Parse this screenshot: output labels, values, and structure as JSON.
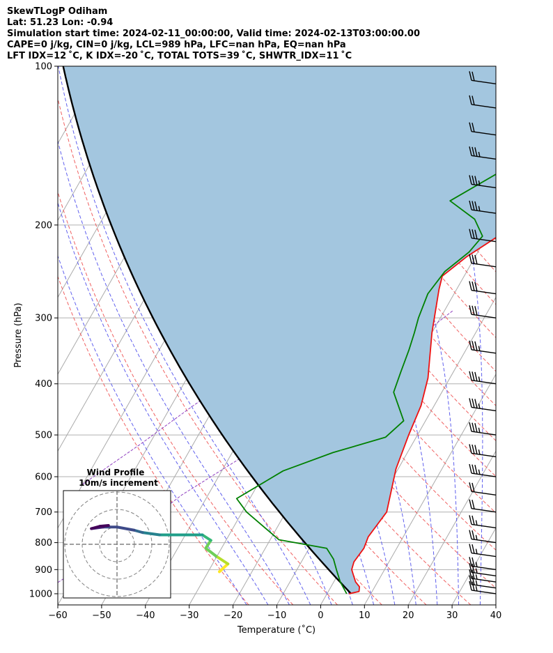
{
  "header": {
    "line1": "SkewTLogP Odiham",
    "line2": "Lat: 51.23   Lon: -0.94",
    "line3": "Simulation start time: 2024-02-11_00:00:00, Valid time: 2024-02-13T03:00:00.00",
    "line4": "CAPE=0 j/kg, CIN=0 j/kg, LCL=989 hPa, LFC=nan hPa, EQ=nan hPa",
    "line5": "LFT IDX=12 ˚C, K IDX=-20 ˚C, TOTAL TOTS=39 ˚C, SHWTR_IDX=11 ˚C"
  },
  "chart_data": {
    "type": "line",
    "xlabel": "Temperature (˚C)",
    "ylabel": "Pressure (hPa)",
    "xlim": [
      -60,
      40
    ],
    "ylim": [
      1050,
      100
    ],
    "y_scale": "log",
    "x_ticks": [
      "−60",
      "−50",
      "−40",
      "−30",
      "−20",
      "−10",
      "0",
      "10",
      "20",
      "30",
      "40"
    ],
    "y_ticks": [
      "100",
      "200",
      "300",
      "400",
      "500",
      "600",
      "700",
      "800",
      "900",
      "1000"
    ],
    "grid": true,
    "series": [
      {
        "color": "#ee1111",
        "points": [
          [
            5.0,
            1000
          ],
          [
            7.0,
            990
          ],
          [
            6.5,
            970
          ],
          [
            5.0,
            950
          ],
          [
            3.5,
            920
          ],
          [
            2.5,
            900
          ],
          [
            2.0,
            870
          ],
          [
            2.5,
            820
          ],
          [
            2.0,
            780
          ],
          [
            3.0,
            700
          ],
          [
            -0.5,
            580
          ],
          [
            -2,
            500
          ],
          [
            -3,
            440
          ],
          [
            -5,
            390
          ],
          [
            -10,
            320
          ],
          [
            -14,
            265
          ],
          [
            -15,
            250
          ],
          [
            -12,
            230
          ],
          [
            -5,
            200
          ],
          [
            0,
            175
          ],
          [
            5,
            155
          ],
          [
            10,
            135
          ],
          [
            13,
            115
          ],
          [
            15,
            100
          ]
        ]
      },
      {
        "color": "#008000",
        "points": [
          [
            4.5,
            1000
          ],
          [
            1.5,
            950
          ],
          [
            -1,
            900
          ],
          [
            -3,
            860
          ],
          [
            -6,
            820
          ],
          [
            -18,
            790
          ],
          [
            -29,
            700
          ],
          [
            -33,
            660
          ],
          [
            -26,
            585
          ],
          [
            -17,
            540
          ],
          [
            -7,
            505
          ],
          [
            -5,
            470
          ],
          [
            -11,
            415
          ],
          [
            -12,
            380
          ],
          [
            -13,
            345
          ],
          [
            -14,
            320
          ],
          [
            -15,
            300
          ],
          [
            -16,
            270
          ],
          [
            -15,
            245
          ],
          [
            -12,
            225
          ],
          [
            -11,
            210
          ],
          [
            -15,
            195
          ],
          [
            -23,
            180
          ],
          [
            -12,
            150
          ],
          [
            -2,
            120
          ],
          [
            7,
            100
          ]
        ]
      }
    ],
    "wind_barbs": [
      {
        "p": 1000,
        "speed_kt": 15
      },
      {
        "p": 975,
        "speed_kt": 15
      },
      {
        "p": 950,
        "speed_kt": 15
      },
      {
        "p": 925,
        "speed_kt": 15
      },
      {
        "p": 900,
        "speed_kt": 15
      },
      {
        "p": 850,
        "speed_kt": 15
      },
      {
        "p": 800,
        "speed_kt": 15
      },
      {
        "p": 750,
        "speed_kt": 15
      },
      {
        "p": 700,
        "speed_kt": 20
      },
      {
        "p": 650,
        "speed_kt": 20
      },
      {
        "p": 600,
        "speed_kt": 25
      },
      {
        "p": 550,
        "speed_kt": 25
      },
      {
        "p": 500,
        "speed_kt": 25
      },
      {
        "p": 450,
        "speed_kt": 25
      },
      {
        "p": 400,
        "speed_kt": 25
      },
      {
        "p": 350,
        "speed_kt": 25
      },
      {
        "p": 300,
        "speed_kt": 30
      },
      {
        "p": 270,
        "speed_kt": 30
      },
      {
        "p": 240,
        "speed_kt": 30
      },
      {
        "p": 215,
        "speed_kt": 30
      },
      {
        "p": 190,
        "speed_kt": 25
      },
      {
        "p": 170,
        "speed_kt": 25
      },
      {
        "p": 150,
        "speed_kt": 25
      },
      {
        "p": 135,
        "speed_kt": 20
      },
      {
        "p": 120,
        "speed_kt": 20
      },
      {
        "p": 108,
        "speed_kt": 20
      }
    ],
    "inset": {
      "title": "Wind Profile",
      "subtitle": "10m/s increment",
      "hodograph": [
        [
          6.0,
          -3.5
        ],
        [
          6.5,
          -2.5
        ],
        [
          5.8,
          -1.5
        ],
        [
          5.2,
          -0.5
        ],
        [
          5.5,
          0.5
        ],
        [
          5.0,
          1.2
        ],
        [
          4.0,
          1.2
        ],
        [
          2.5,
          1.2
        ],
        [
          1.5,
          1.5
        ],
        [
          1.0,
          1.8
        ],
        [
          0.0,
          2.2
        ],
        [
          -0.8,
          2.2
        ],
        [
          -1.5,
          2.0
        ],
        [
          -1.0,
          2.3
        ],
        [
          -0.5,
          2.4
        ]
      ]
    }
  }
}
